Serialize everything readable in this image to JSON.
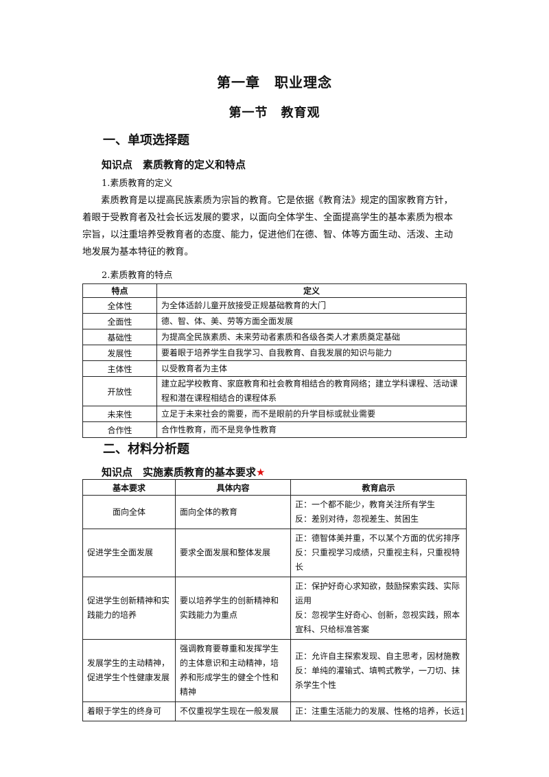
{
  "chapter_title": "第一章　职业理念",
  "section_title": "第一节　教育观",
  "part1": {
    "heading": "一、单项选择题",
    "knowledge_point": "知识点　素质教育的定义和特点",
    "item1_label": "1.素质教育的定义",
    "definition_lines": [
      "素质教育是以提高民族素质为宗旨的教育。它是依据《教育法》规定的国家教育方针，",
      "着眼于受教育者及社会长远发展的要求，以面向全体学生、全面提高学生的基本素质为根本",
      "宗旨，以注重培养受教育者的态度、能力，促进他们在德、智、体等方面生动、活泼、主动",
      "地发展为基本特征的教育。"
    ],
    "item2_label": "2.素质教育的特点",
    "table": {
      "headers": [
        "特点",
        "定义"
      ],
      "rows": [
        [
          "全体性",
          "为全体适龄儿童开放接受正规基础教育的大门"
        ],
        [
          "全面性",
          "德、智、体、美、劳等方面全面发展"
        ],
        [
          "基础性",
          "为提高全民族素质、未来劳动者素质和各级各类人才素质奠定基础"
        ],
        [
          "发展性",
          "要着眼于培养学生自我学习、自我教育、自我发展的知识与能力"
        ],
        [
          "主体性",
          "以受教育者为主体"
        ],
        [
          "开放性",
          "建立起学校教育、家庭教育和社会教育相结合的教育网络；建立学科课程、活动课程和潜在课程相结合的课程体系"
        ],
        [
          "未来性",
          "立足于未来社会的需要，而不是眼前的升学目标或就业需要"
        ],
        [
          "合作性",
          "合作性教育，而不是竞争性教育"
        ]
      ]
    }
  },
  "part2": {
    "heading": "二、材料分析题",
    "knowledge_point": "知识点　实施素质教育的基本要求",
    "star": "★",
    "table": {
      "headers": [
        "基本要求",
        "具体内容",
        "教育启示"
      ],
      "rows": [
        [
          "面向全体",
          "面向全体的教育",
          "正：一个都不能少，教育关注所有学生\n反：差别对待，忽视差生、贫困生"
        ],
        [
          "促进学生全面发展",
          "要求全面发展和整体发展",
          "正：德智体美并重，不以某个方面的优劣排序\n反：只重视学习成绩，只重视主科，只重视特长"
        ],
        [
          "促进学生创新精神和实践能力的培养",
          "要以培养学生的创新精神和实践能力为重点",
          "正：保护好奇心求知欲，鼓励探索实践、实际运用\n反：忽视学生好奇心、创新，忽视实践，照本宣科、只给标准答案"
        ],
        [
          "发展学生的主动精神，促进学生个性健康发展",
          "强调教育要尊重和发挥学生的主体意识和主动精神，培养和形成学生的健全个性和精神",
          "正：允许自主探索发现、自主思考，因材施教\n反：单纯的灌输式、填鸭式教学，一刀切、抹杀学生个性"
        ],
        [
          "着眼于学生的终身可",
          "不仅重视学生现在一般发展",
          "正：注重生活能力的发展、性格的培养，长远"
        ]
      ]
    }
  },
  "page_number": "1"
}
